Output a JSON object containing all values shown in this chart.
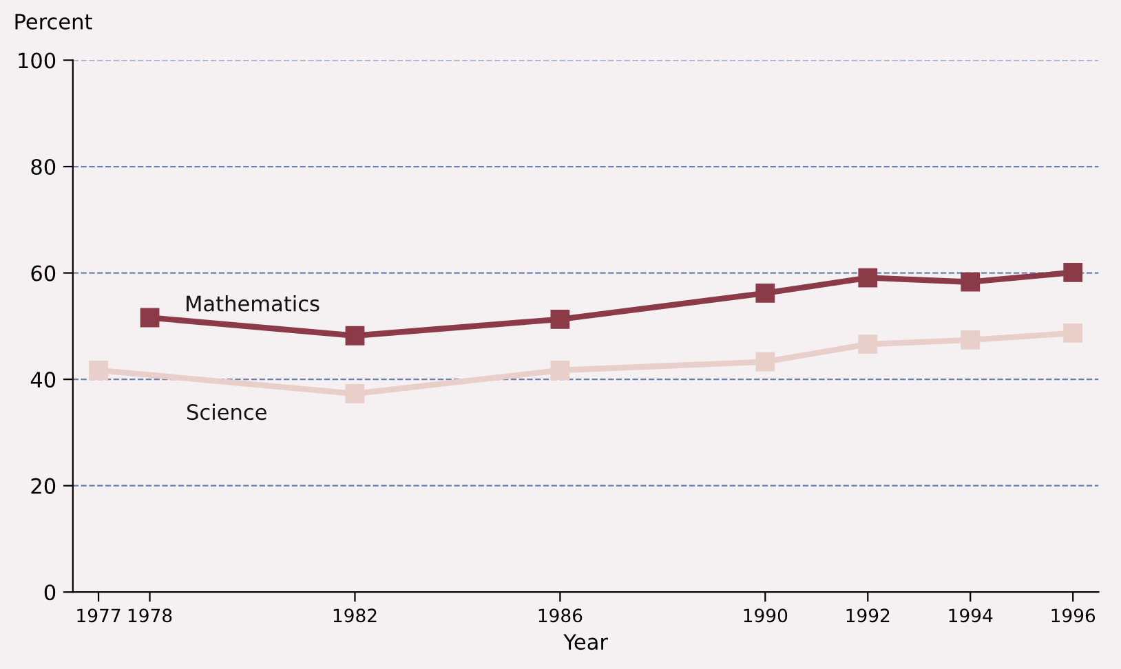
{
  "chart_data": {
    "type": "line",
    "xlabel": "Year",
    "ylabel": "Percent",
    "xlim": [
      1976.5,
      1996.5
    ],
    "xticks": [
      1977,
      1978,
      1982,
      1986,
      1990,
      1992,
      1994,
      1996
    ],
    "ylim": [
      0,
      100
    ],
    "yticks": [
      0,
      20,
      40,
      60,
      80,
      100
    ],
    "grid": "y",
    "marker": "square",
    "line_style": "solid",
    "series": [
      {
        "name": "Mathematics",
        "color": "#8b3a48",
        "x": [
          1978,
          1982,
          1986,
          1990,
          1992,
          1994,
          1996
        ],
        "values": [
          51.6,
          48.2,
          51.3,
          56.2,
          59.1,
          58.3,
          60.1
        ]
      },
      {
        "name": "Science",
        "color": "#e8cfc9",
        "x": [
          1977,
          1982,
          1986,
          1990,
          1992,
          1994,
          1996
        ],
        "values": [
          41.7,
          37.3,
          41.7,
          43.3,
          46.6,
          47.4,
          48.7
        ]
      }
    ]
  }
}
